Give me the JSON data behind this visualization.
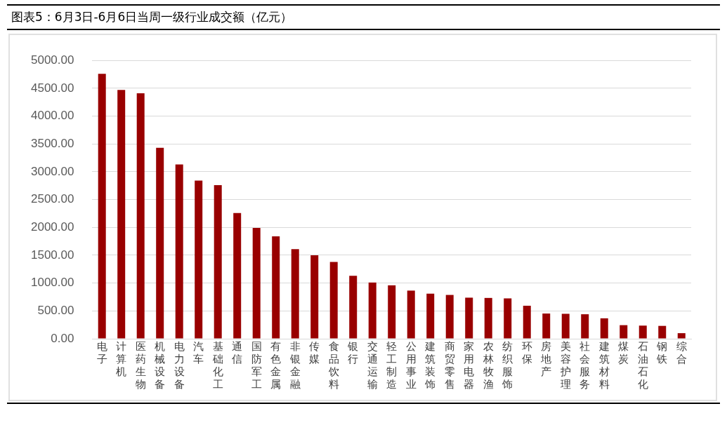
{
  "chart_data": {
    "type": "bar",
    "title": "图表5：6月3日-6月6日当周一级行业成交额（亿元）",
    "categories": [
      "电子",
      "计算机",
      "医药生物",
      "机械设备",
      "电力设备",
      "汽车",
      "基础化工",
      "通信",
      "国防军工",
      "有色金属",
      "非银金融",
      "传媒",
      "食品饮料",
      "银行",
      "交通运输",
      "轻工制造",
      "公用事业",
      "建筑装饰",
      "商贸零售",
      "家用电器",
      "农林牧渔",
      "纺织服饰",
      "环保",
      "房地产",
      "美容护理",
      "社会服务",
      "建筑材料",
      "煤炭",
      "石油石化",
      "钢铁",
      "综合"
    ],
    "values": [
      4760,
      4470,
      4410,
      3430,
      3130,
      2840,
      2760,
      2260,
      1990,
      1840,
      1610,
      1500,
      1380,
      1130,
      1010,
      960,
      865,
      810,
      787,
      738,
      733,
      725,
      593,
      453,
      448,
      440,
      367,
      244,
      236,
      231,
      100
    ],
    "color": "#990000",
    "ylim": [
      0,
      5000
    ],
    "yticks": [
      {
        "value": 0,
        "label": "0.00"
      },
      {
        "value": 500,
        "label": "500.00"
      },
      {
        "value": 1000,
        "label": "1000.00"
      },
      {
        "value": 1500,
        "label": "1500.00"
      },
      {
        "value": 2000,
        "label": "2000.00"
      },
      {
        "value": 2500,
        "label": "2500.00"
      },
      {
        "value": 3000,
        "label": "3000.00"
      },
      {
        "value": 3500,
        "label": "3500.00"
      },
      {
        "value": 4000,
        "label": "4000.00"
      },
      {
        "value": 4500,
        "label": "4500.00"
      },
      {
        "value": 5000,
        "label": "5000.00"
      }
    ],
    "grid": "y",
    "legend": false
  }
}
